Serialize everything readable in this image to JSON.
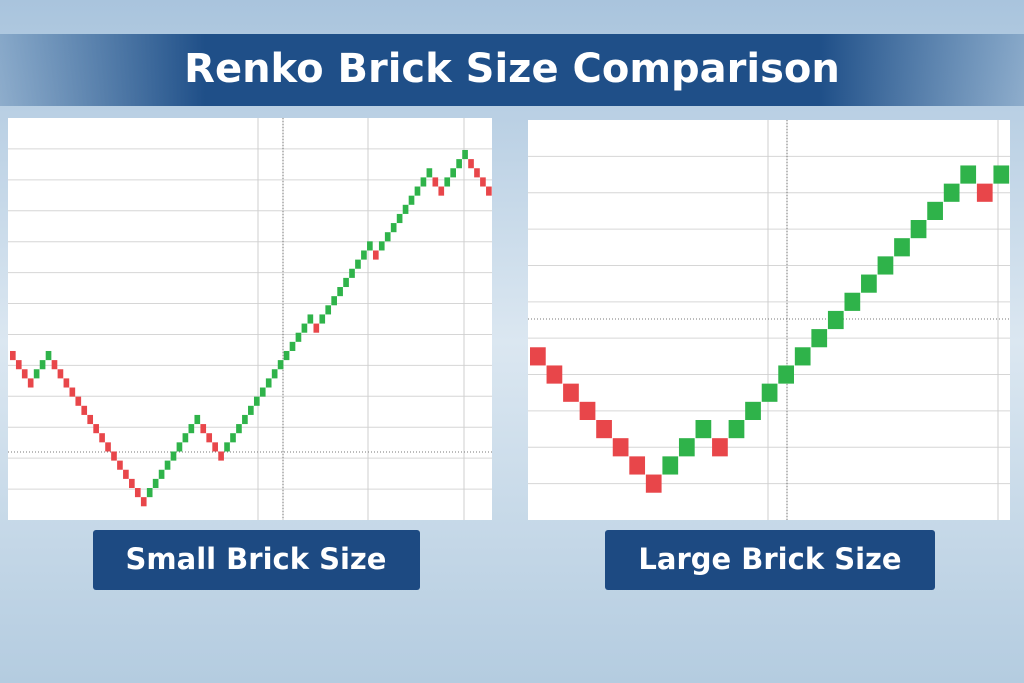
{
  "title": "Renko Brick Size Comparison",
  "chart_data": [
    {
      "type": "renko",
      "title": "Small Brick Size",
      "values": [
        0,
        -1,
        -2,
        -3,
        -2,
        -1,
        0,
        -1,
        -2,
        -3,
        -4,
        -5,
        -6,
        -7,
        -8,
        -9,
        -10,
        -11,
        -12,
        -13,
        -14,
        -15,
        -16,
        -15,
        -14,
        -13,
        -12,
        -11,
        -10,
        -9,
        -8,
        -7,
        -8,
        -9,
        -10,
        -11,
        -10,
        -9,
        -8,
        -7,
        -6,
        -5,
        -4,
        -3,
        -2,
        -1,
        0,
        1,
        2,
        3,
        4,
        3,
        4,
        5,
        6,
        7,
        8,
        9,
        10,
        11,
        12,
        11,
        12,
        13,
        14,
        15,
        16,
        17,
        18,
        19,
        20,
        19,
        18,
        19,
        20,
        21,
        22,
        21,
        20,
        19,
        18
      ],
      "ylim": [
        -18,
        26
      ],
      "up_color": "#2fb34a",
      "down_color": "#e8464a",
      "grid": true
    },
    {
      "type": "renko",
      "title": "Large Brick Size",
      "values": [
        0,
        -1,
        -2,
        -3,
        -4,
        -5,
        -6,
        -7,
        -6,
        -5,
        -4,
        -5,
        -4,
        -3,
        -2,
        -1,
        0,
        1,
        2,
        3,
        4,
        5,
        6,
        7,
        8,
        9,
        10,
        9,
        10
      ],
      "ylim": [
        -9,
        13
      ],
      "up_color": "#2fb34a",
      "down_color": "#e8464a",
      "grid": true
    }
  ]
}
